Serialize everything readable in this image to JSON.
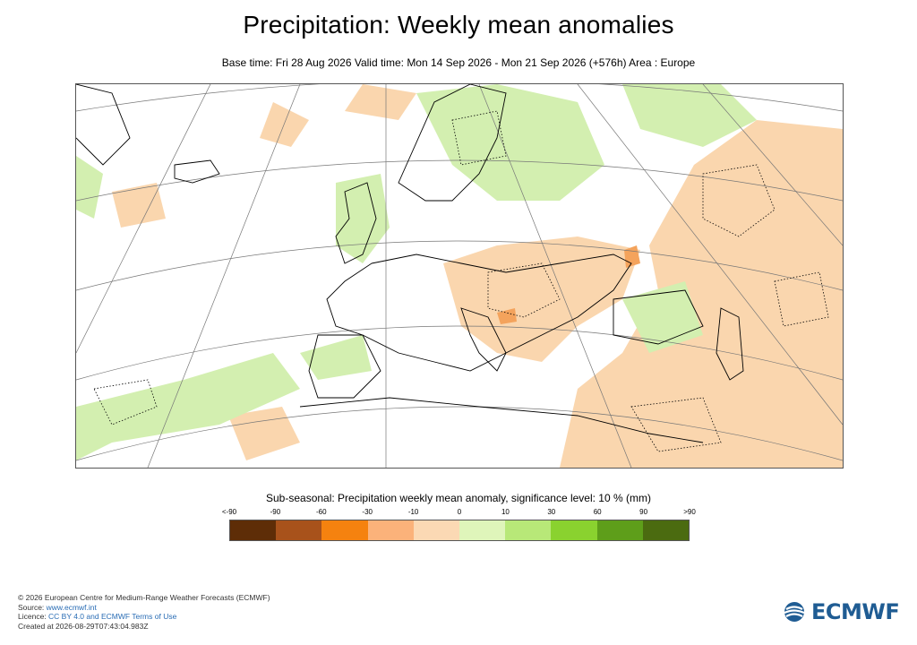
{
  "title": "Precipitation: Weekly mean anomalies",
  "subtitle": "Base time: Fri 28 Aug 2026 Valid time: Mon 14 Sep 2026 - Mon 21 Sep 2026 (+576h) Area : Europe",
  "legend": {
    "title": "Sub-seasonal: Precipitation weekly mean anomaly, significance level: 10 % (mm)",
    "ticks": [
      "<-90",
      "-90",
      "-60",
      "-30",
      "-10",
      "0",
      "10",
      "30",
      "60",
      "90",
      ">90"
    ],
    "colors": [
      "#5e2d07",
      "#a8521b",
      "#f5820f",
      "#fbb27a",
      "#fbd9b4",
      "#dff5ba",
      "#b8e878",
      "#8ad22f",
      "#5e9e1a",
      "#4b6b10"
    ]
  },
  "map_colors": {
    "dry_anomaly": "#fad6ae",
    "wet_anomaly": "#d3efb0",
    "strong_dry": "#f4a35c",
    "coastline": "#000000",
    "graticule": "#777777"
  },
  "footer": {
    "copyright": "© 2026 European Centre for Medium-Range Weather Forecasts (ECMWF)",
    "source_label": "Source: ",
    "source_link": "www.ecmwf.int",
    "licence_label": "Licence: ",
    "licence_link": "CC BY 4.0 and ECMWF Terms of Use",
    "created": "Created at 2026-08-29T07:43:04.983Z"
  },
  "logo": {
    "text": "ECMWF"
  }
}
